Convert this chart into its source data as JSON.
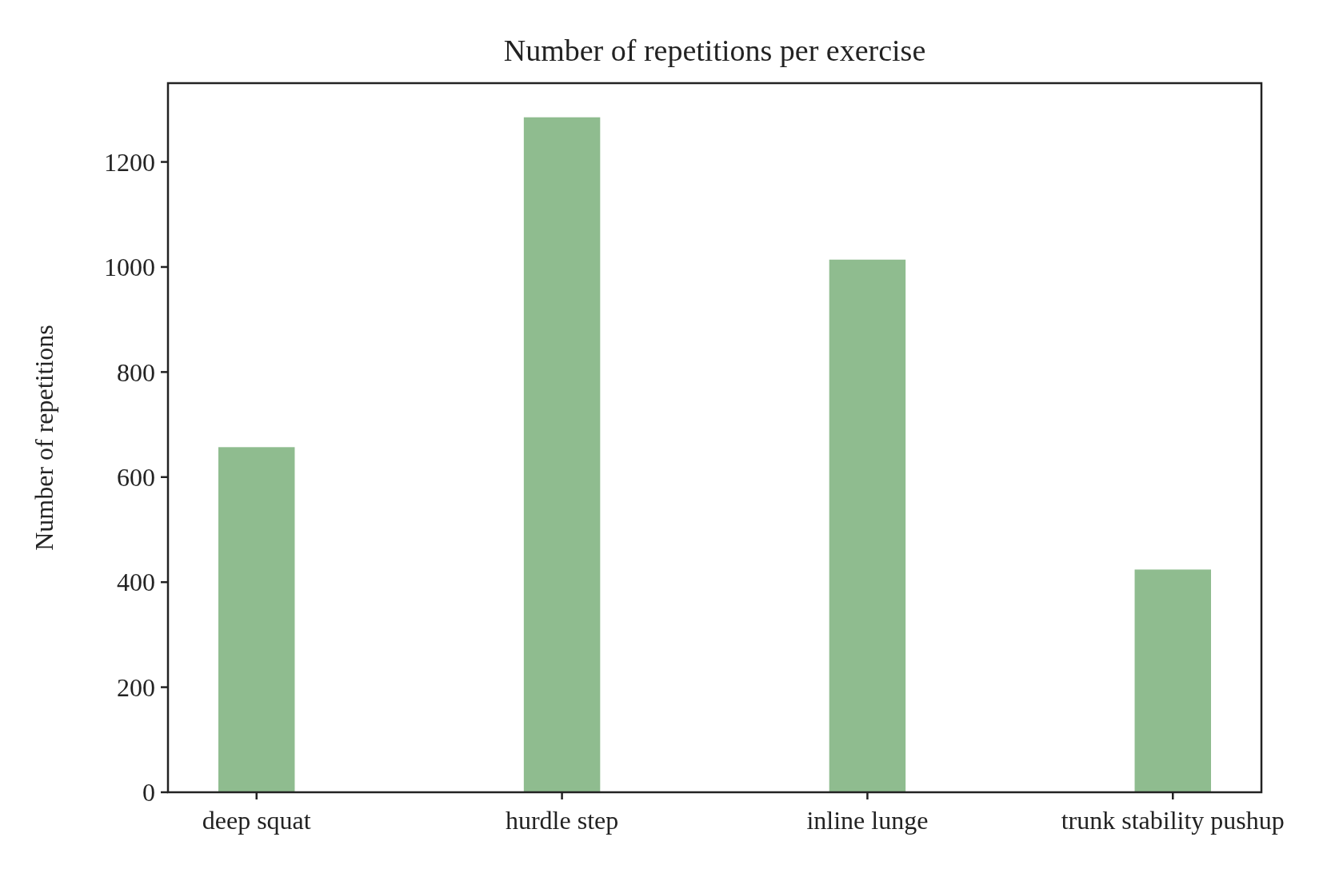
{
  "chart_data": {
    "type": "bar",
    "title": "Number of repetitions per exercise",
    "ylabel": "Number of repetitions",
    "categories": [
      "deep squat",
      "hurdle step",
      "inline lunge",
      "trunk stability pushup"
    ],
    "values": [
      657,
      1285,
      1014,
      424
    ],
    "color": "#8fbc8f",
    "ylim": [
      0,
      1350
    ],
    "yticks": [
      0,
      200,
      400,
      600,
      800,
      1000,
      1200
    ],
    "grid": false
  }
}
